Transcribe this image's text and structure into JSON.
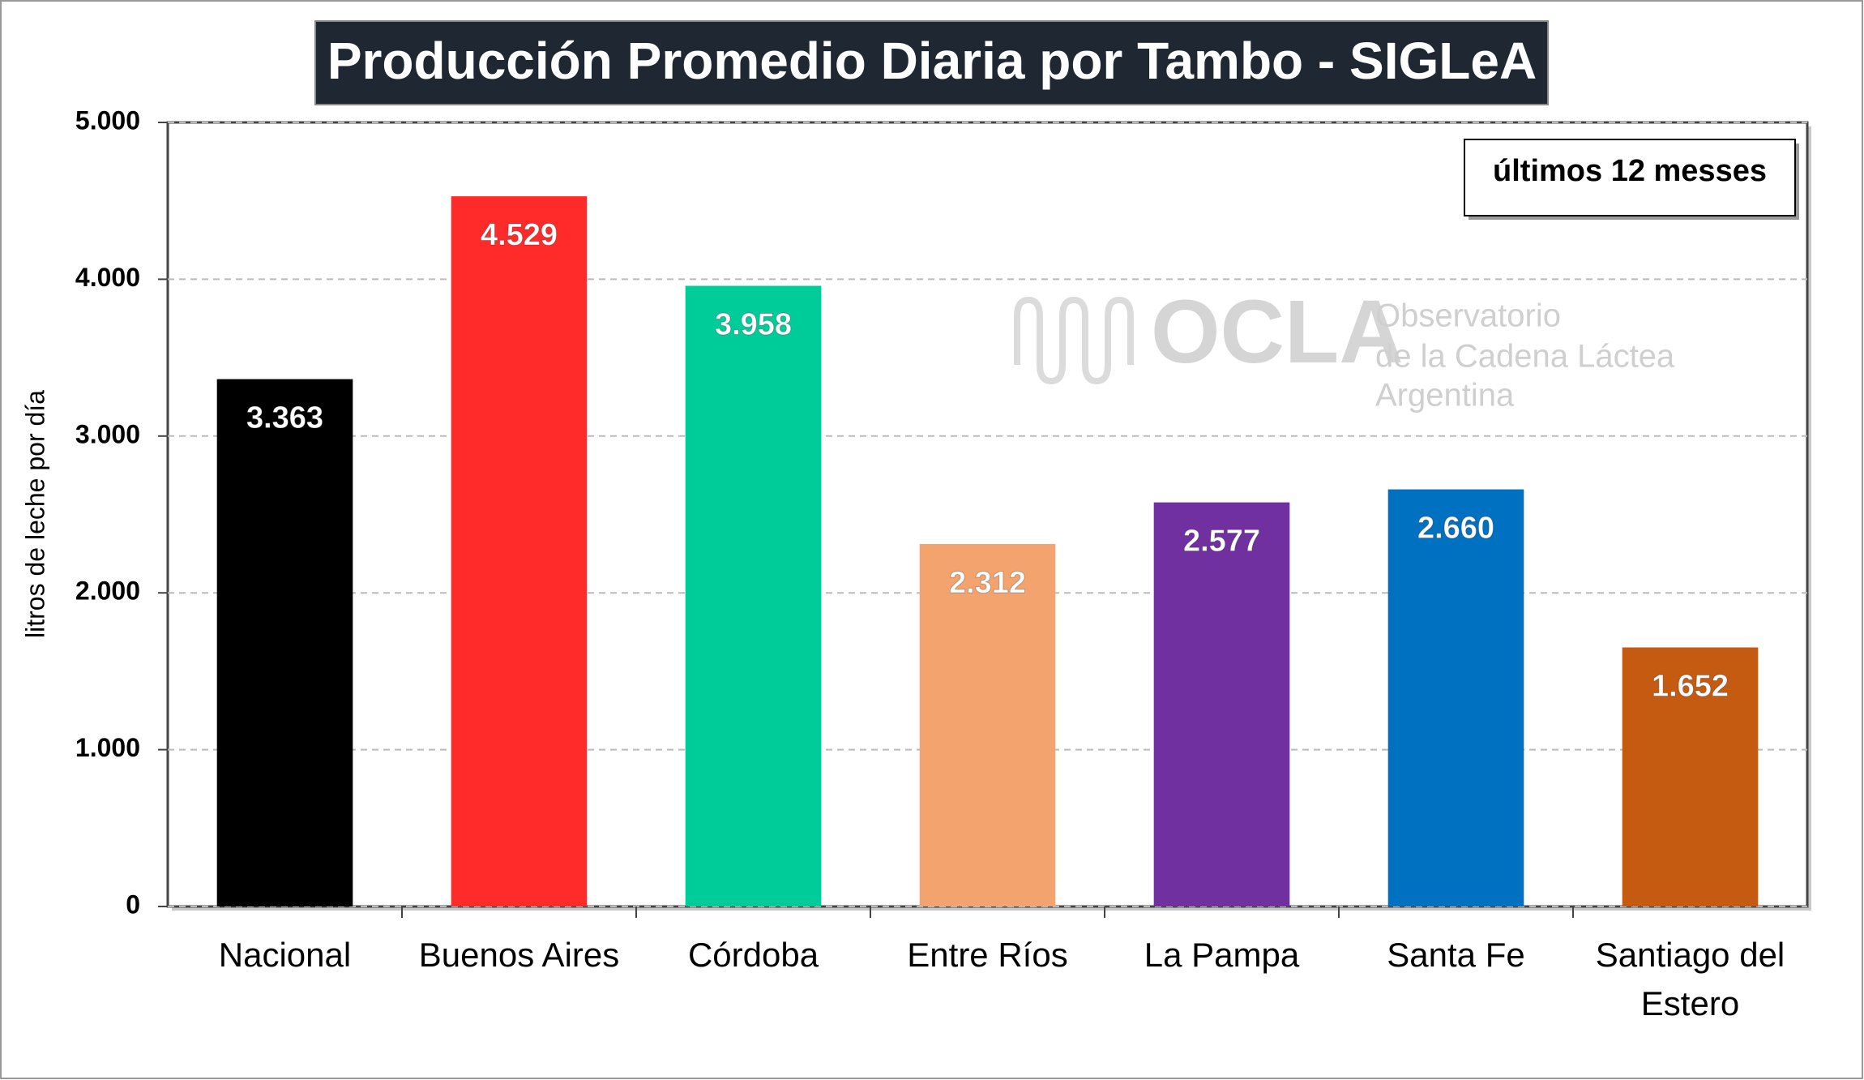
{
  "chart_data": {
    "type": "bar",
    "title": "Producción Promedio Diaria por Tambo - SIGLeA",
    "note": "últimos 12 messes",
    "ylabel": "litros de leche por día",
    "watermark": {
      "logo": "OCLA",
      "lines": [
        "Observatorio",
        "de la Cadena Láctea",
        "Argentina"
      ]
    },
    "categories": [
      "Nacional",
      "Buenos Aires",
      "Córdoba",
      "Entre Ríos",
      "La Pampa",
      "Santa Fe",
      "Santiago del Estero"
    ],
    "values": [
      3363,
      4529,
      3958,
      2312,
      2577,
      2660,
      1652
    ],
    "value_labels": [
      "3.363",
      "4.529",
      "3.958",
      "2.312",
      "2.577",
      "2.660",
      "1.652"
    ],
    "colors": [
      "#000000",
      "#ff2a2a",
      "#00cc99",
      "#f2a36e",
      "#7030a0",
      "#0070c0",
      "#c55a11"
    ],
    "ylim": [
      0,
      5000
    ],
    "yticks": [
      0,
      {
        "value": 1000,
        "label": "1.000"
      },
      {
        "value": 2000,
        "label": "2.000"
      },
      {
        "value": 3000,
        "label": "3.000"
      },
      {
        "value": 4000,
        "label": "4.000"
      },
      {
        "value": 5000,
        "label": "5.000"
      }
    ],
    "grid": true
  }
}
